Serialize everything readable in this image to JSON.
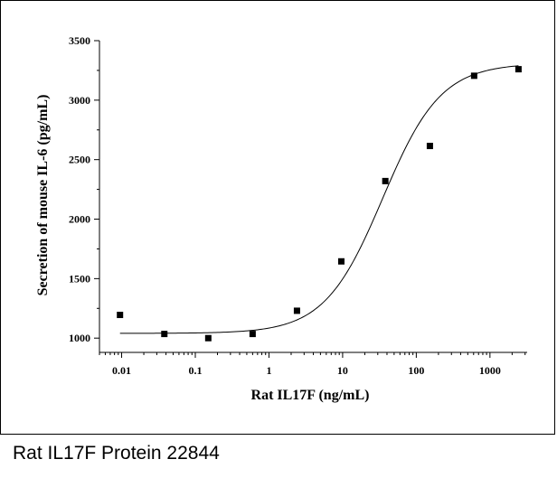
{
  "caption": "Rat IL17F Protein 22844",
  "chart_data": {
    "type": "scatter",
    "xlabel": "Rat IL17F (ng/mL)",
    "ylabel": "Secretion of mouse IL-6 (pg/mL)",
    "x_scale": "log",
    "xlim": [
      0.005,
      3200
    ],
    "ylim": [
      880,
      3500
    ],
    "x_ticks": [
      {
        "value": 0.01,
        "label": "0.01"
      },
      {
        "value": 0.1,
        "label": "0.1"
      },
      {
        "value": 1,
        "label": "1"
      },
      {
        "value": 10,
        "label": "10"
      },
      {
        "value": 100,
        "label": "100"
      },
      {
        "value": 1000,
        "label": "1000"
      }
    ],
    "y_ticks": [
      {
        "value": 1000,
        "label": "1000"
      },
      {
        "value": 1500,
        "label": "1500"
      },
      {
        "value": 2000,
        "label": "2000"
      },
      {
        "value": 2500,
        "label": "2500"
      },
      {
        "value": 3000,
        "label": "3000"
      },
      {
        "value": 3500,
        "label": "3500"
      }
    ],
    "points": [
      {
        "x": 0.0095,
        "y": 1195
      },
      {
        "x": 0.038,
        "y": 1035
      },
      {
        "x": 0.15,
        "y": 1000
      },
      {
        "x": 0.6,
        "y": 1035
      },
      {
        "x": 2.4,
        "y": 1230
      },
      {
        "x": 9.6,
        "y": 1645
      },
      {
        "x": 38,
        "y": 2320
      },
      {
        "x": 153,
        "y": 2615
      },
      {
        "x": 610,
        "y": 3205
      },
      {
        "x": 2440,
        "y": 3260
      }
    ],
    "fit": {
      "type": "4PL",
      "bottom": 1040,
      "top": 3310,
      "ec50": 35,
      "hill": 1.1,
      "x_range": [
        0.0095,
        2440
      ]
    },
    "colors": {
      "marker": "#000000",
      "line": "#000000",
      "axis": "#000000"
    }
  }
}
